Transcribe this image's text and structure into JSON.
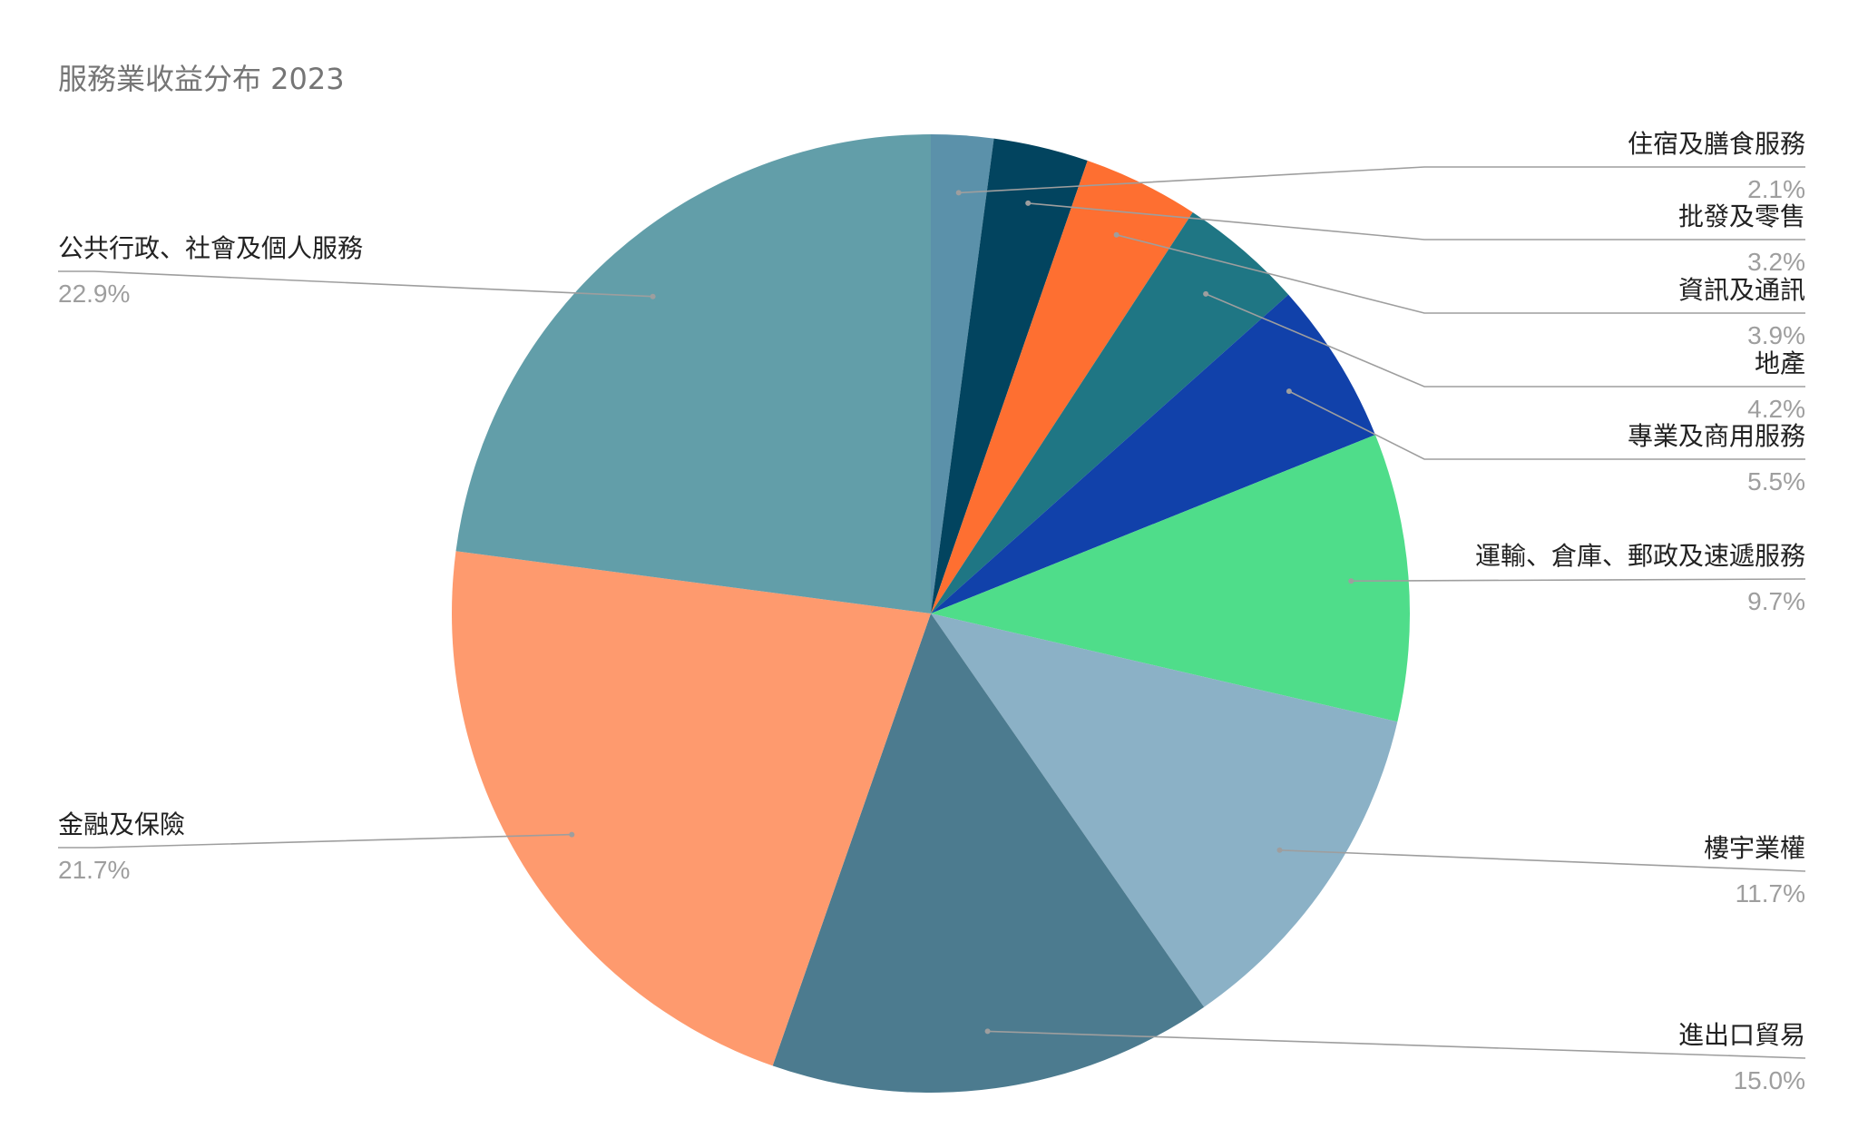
{
  "chart_data": {
    "type": "pie",
    "title": "服務業收益分布 2023",
    "unit": "%",
    "start_angle_deg": 0,
    "direction": "clockwise",
    "slices": [
      {
        "label": "住宿及膳食服務",
        "value": 2.1,
        "display": "2.1%",
        "color": "#5b91aa"
      },
      {
        "label": "批發及零售",
        "value": 3.2,
        "display": "3.2%",
        "color": "#02445f"
      },
      {
        "label": "資訊及通訊",
        "value": 3.9,
        "display": "3.9%",
        "color": "#fe6f31"
      },
      {
        "label": "地產",
        "value": 4.2,
        "display": "4.2%",
        "color": "#1f7684"
      },
      {
        "label": "專業及商用服務",
        "value": 5.5,
        "display": "5.5%",
        "color": "#1141aa"
      },
      {
        "label": "運輸、倉庫、郵政及速遞服務",
        "value": 9.7,
        "display": "9.7%",
        "color": "#4fdd8a"
      },
      {
        "label": "樓宇業權",
        "value": 11.7,
        "display": "11.7%",
        "color": "#8bb1c6"
      },
      {
        "label": "進出口貿易",
        "value": 15.0,
        "display": "15.0%",
        "color": "#4c7b8f"
      },
      {
        "label": "金融及保險",
        "value": 21.7,
        "display": "21.7%",
        "color": "#fe9a6e"
      },
      {
        "label": "公共行政、社會及個人服務",
        "value": 22.9,
        "display": "22.9%",
        "color": "#629ea9"
      }
    ]
  }
}
